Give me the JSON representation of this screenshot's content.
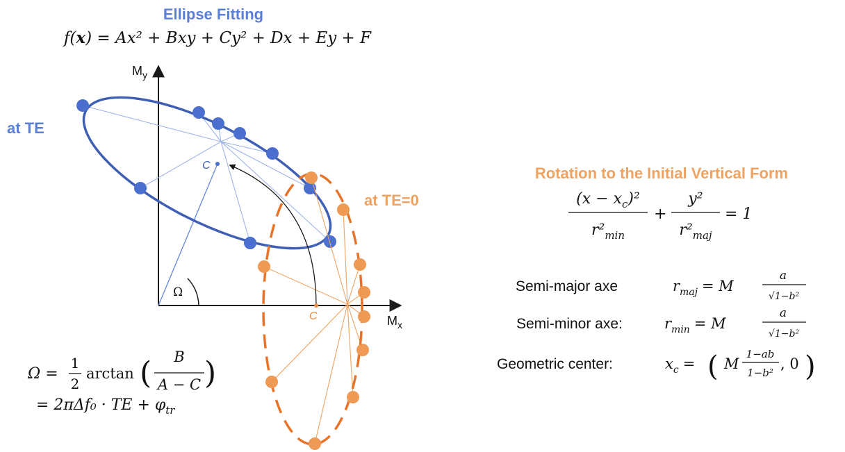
{
  "colors": {
    "blue": "#4a6fcf",
    "blue_title": "#5b7fd6",
    "orange": "#ee8a3a",
    "orange_title": "#f0a260",
    "orange_dashed": "#e8742a",
    "axis": "#1a1a1a"
  },
  "title": "Ellipse Fitting",
  "fit_equation": {
    "lhs": "f(",
    "bold_x": "x",
    "rhs": ") = Ax² + Bxy + Cy² + Dx + Ey + F"
  },
  "labels": {
    "at_te": "at TE",
    "at_te0": "at TE=0",
    "axis_y": "M",
    "axis_y_sub": "y",
    "axis_x": "M",
    "axis_x_sub": "x",
    "center_upper": "C",
    "center_lower": "C",
    "omega": "Ω"
  },
  "omega_equation": {
    "line1_lhs": "Ω =",
    "half_num": "1",
    "half_den": "2",
    "arctan": "arctan",
    "frac_num": "B",
    "frac_den": "A − C",
    "line2": "= 2πΔf₀ · TE + φ",
    "line2_sub": "tr"
  },
  "rotation": {
    "title": "Rotation to the Initial Vertical Form",
    "term1_num": "(x − x",
    "term1_num_sub": "c",
    "term1_num_end": ")²",
    "term1_den": "r²",
    "term1_den_sub": "min",
    "plus": "+",
    "term2_num": "y²",
    "term2_den": "r²",
    "term2_den_sub": "maj",
    "equals": "= 1"
  },
  "semi_major": {
    "label": "Semi-major axe",
    "lhs": "r",
    "lhs_sub": "maj",
    "eq": "= M",
    "num": "a",
    "den": "√1−b²"
  },
  "semi_minor": {
    "label": "Semi-minor axe:",
    "lhs": "r",
    "lhs_sub": "min",
    "eq": "= M",
    "num": "a",
    "den": "√1−b²"
  },
  "geo_center": {
    "label": "Geometric center:",
    "lhs": "x",
    "lhs_sub": "c",
    "eq": "=",
    "open": "(",
    "m": "M",
    "num": "1−ab",
    "den": "1−b²",
    "tail": ", 0",
    "close": ")"
  }
}
